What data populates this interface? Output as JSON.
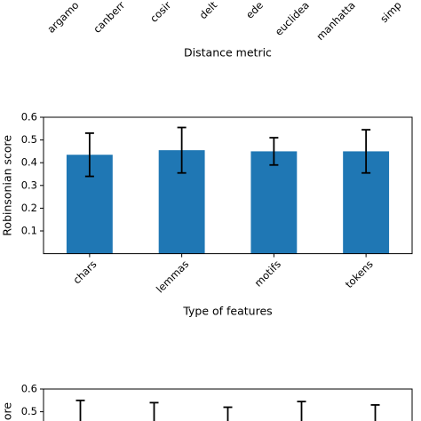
{
  "chart_data": [
    {
      "type": "labels",
      "categories": [
        "argamo",
        "canberr",
        "cosir",
        "delt",
        "ede",
        "euclidea",
        "manhatta",
        "simp"
      ],
      "xlabel": "Distance metric"
    },
    {
      "type": "bar",
      "categories": [
        "chars",
        "lemmas",
        "motifs",
        "tokens"
      ],
      "values": [
        0.435,
        0.455,
        0.45,
        0.45
      ],
      "errors": [
        0.095,
        0.1,
        0.06,
        0.095
      ],
      "color": "#1f77b4",
      "ylim": [
        0,
        0.6
      ],
      "yticks": [
        0.1,
        0.2,
        0.3,
        0.4,
        0.5,
        0.6
      ],
      "xlabel": "Type of features",
      "ylabel": "Robinsonian score"
    },
    {
      "type": "errorbar",
      "values": [
        0.55,
        0.54,
        0.52,
        0.545,
        0.53
      ],
      "ylim": [
        0,
        0.6
      ],
      "yticks": [
        0.5,
        0.6
      ],
      "ylabel": "ore"
    }
  ]
}
